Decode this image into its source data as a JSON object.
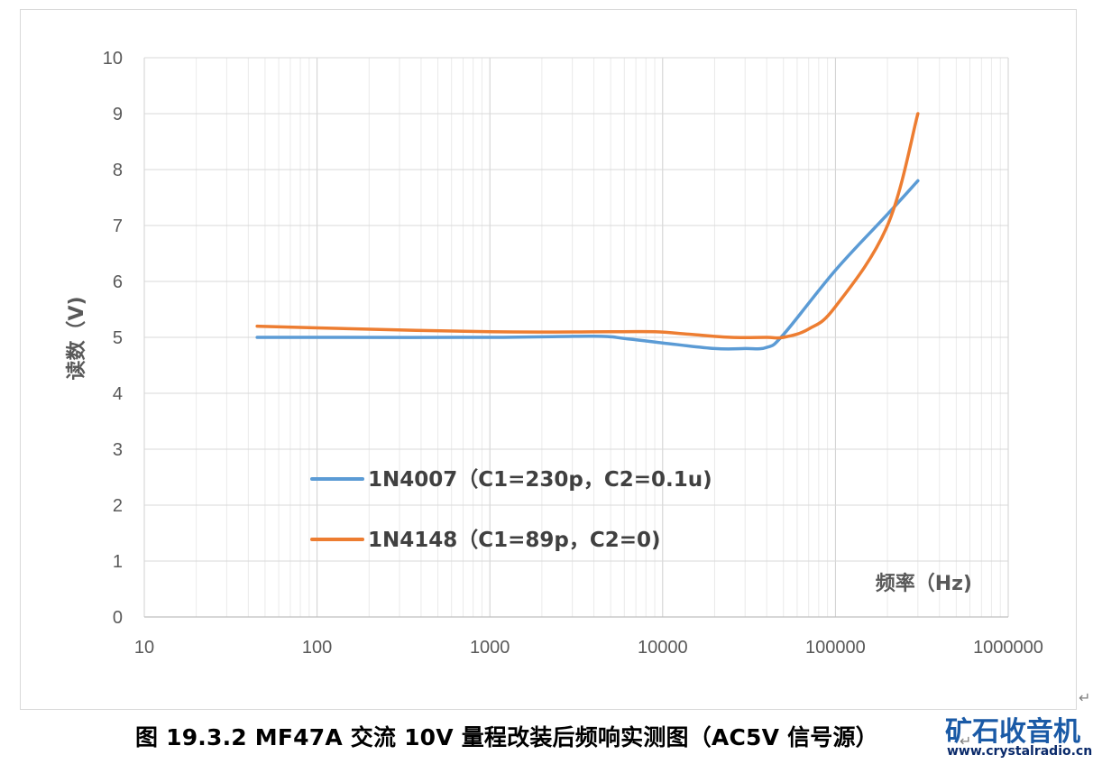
{
  "chart_data": {
    "type": "line",
    "xscale": "log",
    "xlim": [
      10,
      1000000
    ],
    "ylim": [
      0,
      10
    ],
    "grid": true,
    "xlabel": "频率（Hz)",
    "ylabel": "读数（V)",
    "x_ticks": [
      "10",
      "100",
      "1000",
      "10000",
      "100000",
      "1000000"
    ],
    "y_ticks": [
      "0",
      "1",
      "2",
      "3",
      "4",
      "5",
      "6",
      "7",
      "8",
      "9",
      "10"
    ],
    "legend_position": "center-left",
    "series": [
      {
        "name": "1N4007（C1=230p，C2=0.1u)",
        "color": "#5b9bd5",
        "x": [
          45,
          100,
          1000,
          4000,
          6000,
          10000,
          20000,
          30000,
          40000,
          50000,
          100000,
          200000,
          300000
        ],
        "y": [
          5.0,
          5.0,
          5.0,
          5.02,
          4.98,
          4.9,
          4.8,
          4.8,
          4.82,
          5.05,
          6.2,
          7.2,
          7.8
        ]
      },
      {
        "name": "1N4148（C1=89p，C2=0)",
        "color": "#ed7d31",
        "x": [
          45,
          100,
          1000,
          5000,
          9000,
          15000,
          25000,
          40000,
          50000,
          70000,
          100000,
          200000,
          300000
        ],
        "y": [
          5.2,
          5.17,
          5.1,
          5.1,
          5.1,
          5.05,
          5.0,
          5.0,
          5.0,
          5.15,
          5.55,
          7.0,
          9.0
        ]
      }
    ]
  },
  "caption": "图 19.3.2 MF47A 交流 10V 量程改装后频响实测图（AC5V 信号源）",
  "watermark": {
    "title": "矿石收音机",
    "url": "www.crystalradio.cn"
  },
  "return_mark": "↵"
}
